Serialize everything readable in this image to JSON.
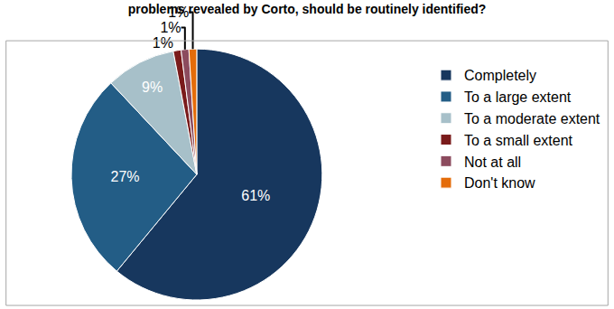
{
  "chart_data": {
    "type": "pie",
    "title": "problems revealed by Corto, should be routinely identified?",
    "categories": [
      "Completely",
      "To a large extent",
      "To a moderate extent",
      "To a small extent",
      "Not at all",
      "Don't know"
    ],
    "values": [
      61,
      27,
      9,
      1,
      1,
      1
    ],
    "value_labels": [
      "61%",
      "27%",
      "9%",
      "1%",
      "1%",
      "1%"
    ],
    "colors": [
      "#17375e",
      "#235d86",
      "#a7c0c9",
      "#7a1b1b",
      "#8c4b5e",
      "#e46c0a"
    ],
    "data_labels": true,
    "legend": "right"
  }
}
